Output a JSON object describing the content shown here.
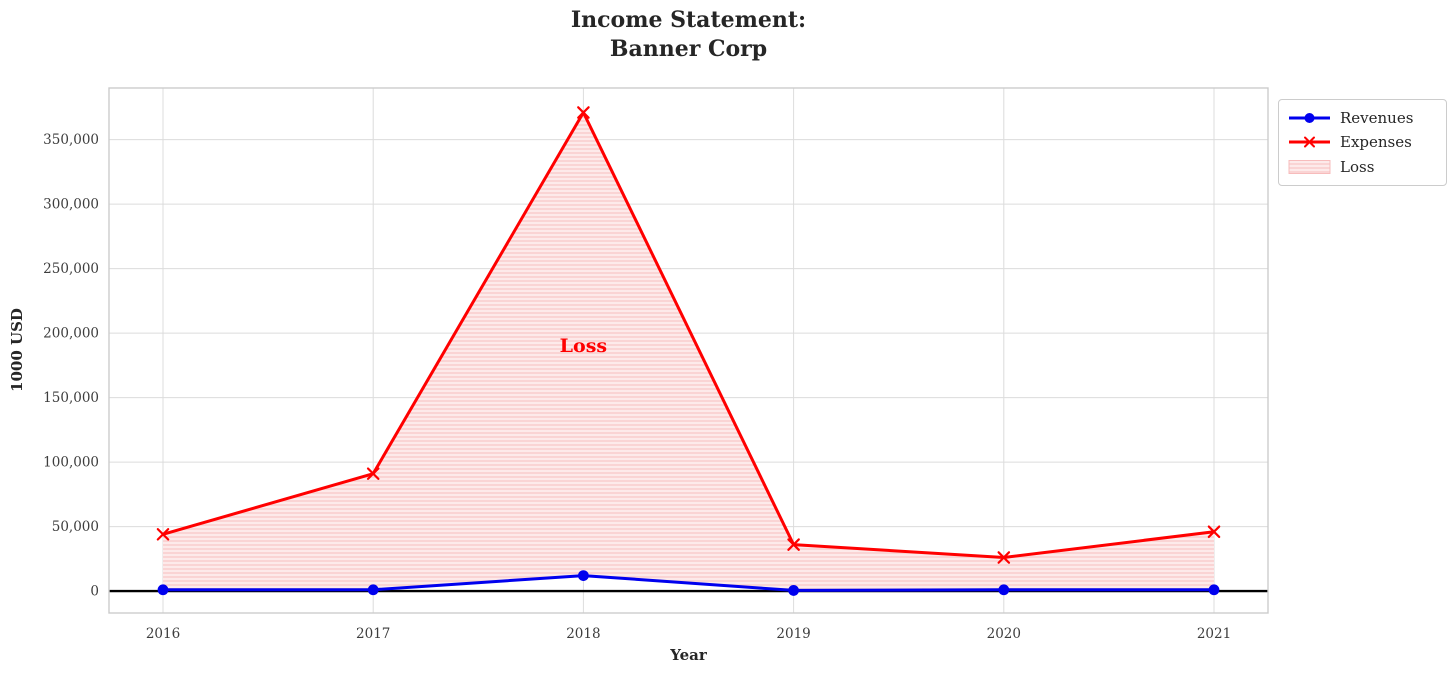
{
  "title": {
    "line1": "Income Statement:",
    "line2": "Banner Corp"
  },
  "y_axis_label": "1000 USD",
  "x_axis_label": "Year",
  "legend": {
    "items": [
      {
        "label": "Revenues",
        "marker": "circle",
        "color": "#0000ee"
      },
      {
        "label": "Expenses",
        "marker": "x",
        "color": "#ff0000"
      },
      {
        "label": "Loss",
        "marker": "patch",
        "color": "#fdeaea"
      }
    ]
  },
  "chart_data": {
    "type": "line",
    "title": "Income Statement: Banner Corp",
    "categories": [
      "2016",
      "2017",
      "2018",
      "2019",
      "2020",
      "2021"
    ],
    "series": [
      {
        "name": "Revenues",
        "color": "#0000ee",
        "marker": "circle",
        "values": [
          1000,
          1000,
          12000,
          500,
          1000,
          1000
        ]
      },
      {
        "name": "Expenses",
        "color": "#ff0000",
        "marker": "x",
        "values": [
          44000,
          91000,
          371000,
          36000,
          26000,
          46000
        ]
      }
    ],
    "fill_between": {
      "label": "Loss",
      "upper": "Expenses",
      "lower": "Revenues",
      "fill_color": "#fdeaea",
      "hatch_color": "#f9cfcf",
      "hatch_style": "horizontal-lines",
      "edge_color": "#f7bcbc"
    },
    "xlabel": "Year",
    "ylabel": "1000 USD",
    "ylim": [
      -17000,
      390000
    ],
    "yticks": [
      0,
      50000,
      100000,
      150000,
      200000,
      250000,
      300000,
      350000
    ],
    "ytick_labels": [
      "0",
      "50,000",
      "100,000",
      "150,000",
      "200,000",
      "250,000",
      "300,000",
      "350,000"
    ],
    "grid": true,
    "zero_line": true,
    "legend_position": "outside upper right",
    "annotations": [
      {
        "text": "Loss",
        "category": "2018",
        "y": 190000,
        "color": "#ff0000"
      }
    ]
  }
}
